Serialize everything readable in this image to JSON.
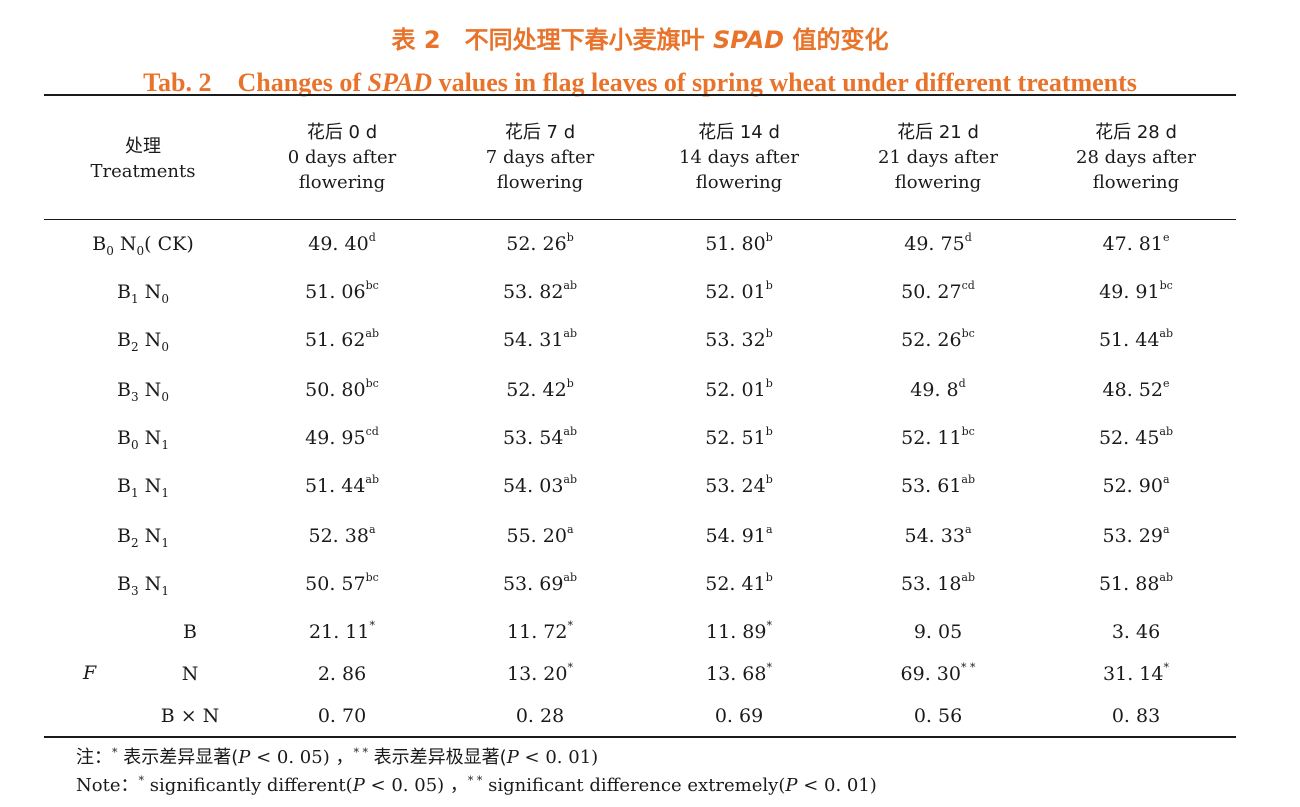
{
  "title_cn": {
    "prefix": "表 2　不同处理下春小麦旗叶 ",
    "italic": "SPAD",
    "suffix": " 值的变化"
  },
  "title_en": {
    "prefix": "Tab. 2　Changes of ",
    "italic": "SPAD",
    "suffix": " values in flag leaves of spring wheat under different treatments"
  },
  "header": {
    "treatment_cn": "处理",
    "treatment_en": "Treatments",
    "columns": [
      {
        "cn": "花后 0 d",
        "en1": "0 days after",
        "en2": "flowering"
      },
      {
        "cn": "花后 7 d",
        "en1": "7 days after",
        "en2": "flowering"
      },
      {
        "cn": "花后 14 d",
        "en1": "14 days after",
        "en2": "flowering"
      },
      {
        "cn": "花后 21 d",
        "en1": "21 days after",
        "en2": "flowering"
      },
      {
        "cn": "花后 28 d",
        "en1": "28 days after",
        "en2": "flowering"
      }
    ]
  },
  "rows": [
    {
      "b": "0",
      "n": "0",
      "extra": "( CK)",
      "cells": [
        [
          "49. 40",
          "d"
        ],
        [
          "52. 26",
          "b"
        ],
        [
          "51. 80",
          "b"
        ],
        [
          "49. 75",
          "d"
        ],
        [
          "47. 81",
          "e"
        ]
      ]
    },
    {
      "b": "1",
      "n": "0",
      "extra": "",
      "cells": [
        [
          "51. 06",
          "bc"
        ],
        [
          "53. 82",
          "ab"
        ],
        [
          "52. 01",
          "b"
        ],
        [
          "50. 27",
          "cd"
        ],
        [
          "49. 91",
          "bc"
        ]
      ]
    },
    {
      "b": "2",
      "n": "0",
      "extra": "",
      "cells": [
        [
          "51. 62",
          "ab"
        ],
        [
          "54. 31",
          "ab"
        ],
        [
          "53. 32",
          "b"
        ],
        [
          "52. 26",
          "bc"
        ],
        [
          "51. 44",
          "ab"
        ]
      ]
    },
    {
      "b": "3",
      "n": "0",
      "extra": "",
      "cells": [
        [
          "50. 80",
          "bc"
        ],
        [
          "52. 42",
          "b"
        ],
        [
          "52. 01",
          "b"
        ],
        [
          "49. 8",
          "d"
        ],
        [
          "48. 52",
          "e"
        ]
      ]
    },
    {
      "b": "0",
      "n": "1",
      "extra": "",
      "cells": [
        [
          "49. 95",
          "cd"
        ],
        [
          "53. 54",
          "ab"
        ],
        [
          "52. 51",
          "b"
        ],
        [
          "52. 11",
          "bc"
        ],
        [
          "52. 45",
          "ab"
        ]
      ]
    },
    {
      "b": "1",
      "n": "1",
      "extra": "",
      "cells": [
        [
          "51. 44",
          "ab"
        ],
        [
          "54. 03",
          "ab"
        ],
        [
          "53. 24",
          "b"
        ],
        [
          "53. 61",
          "ab"
        ],
        [
          "52. 90",
          "a"
        ]
      ]
    },
    {
      "b": "2",
      "n": "1",
      "extra": "",
      "cells": [
        [
          "52. 38",
          "a"
        ],
        [
          "55. 20",
          "a"
        ],
        [
          "54. 91",
          "a"
        ],
        [
          "54. 33",
          "a"
        ],
        [
          "53. 29",
          "a"
        ]
      ]
    },
    {
      "b": "3",
      "n": "1",
      "extra": "",
      "cells": [
        [
          "50. 57",
          "bc"
        ],
        [
          "53. 69",
          "ab"
        ],
        [
          "52. 41",
          "b"
        ],
        [
          "53. 18",
          "ab"
        ],
        [
          "51. 88",
          "ab"
        ]
      ]
    }
  ],
  "f_test": {
    "label": "F",
    "rows": [
      {
        "factor": "B",
        "cells": [
          [
            "21. 11",
            "*"
          ],
          [
            "11. 72",
            "*"
          ],
          [
            "11. 89",
            "*"
          ],
          [
            "9. 05",
            ""
          ],
          [
            "3. 46",
            ""
          ]
        ]
      },
      {
        "factor": "N",
        "cells": [
          [
            "2. 86",
            ""
          ],
          [
            "13. 20",
            "*"
          ],
          [
            "13. 68",
            "*"
          ],
          [
            "69. 30",
            "*  *"
          ],
          [
            "31. 14",
            "*"
          ]
        ]
      },
      {
        "factor": "B × N",
        "cells": [
          [
            "0. 70",
            ""
          ],
          [
            "0. 28",
            ""
          ],
          [
            "0. 69",
            ""
          ],
          [
            "0. 56",
            ""
          ],
          [
            "0. 83",
            ""
          ]
        ]
      }
    ]
  },
  "notes": {
    "cn": [
      "注：",
      "*",
      " 表示差异显著(",
      "P",
      " < 0. 05) ，",
      "* *",
      " 表示差异极显著(",
      "P",
      " < 0. 01)"
    ],
    "en": [
      "Note：",
      "*",
      "  significantly different(",
      "P",
      " < 0. 05) ，",
      "* *",
      "  significant difference extremely(",
      "P",
      " < 0. 01)"
    ]
  }
}
